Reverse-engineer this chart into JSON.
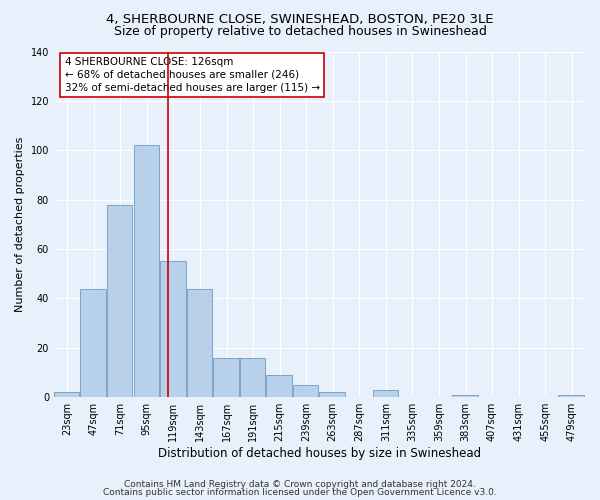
{
  "title1": "4, SHERBOURNE CLOSE, SWINESHEAD, BOSTON, PE20 3LE",
  "title2": "Size of property relative to detached houses in Swineshead",
  "xlabel": "Distribution of detached houses by size in Swineshead",
  "ylabel": "Number of detached properties",
  "bin_edges": [
    23,
    47,
    71,
    95,
    119,
    143,
    167,
    191,
    215,
    239,
    263,
    287,
    311,
    335,
    359,
    383,
    407,
    431,
    455,
    479,
    503
  ],
  "bar_heights": [
    2,
    44,
    78,
    102,
    55,
    44,
    16,
    16,
    9,
    5,
    2,
    0,
    3,
    0,
    0,
    1,
    0,
    0,
    0,
    1
  ],
  "bar_color": "#b8d0ea",
  "bar_edge_color": "#6a9cc0",
  "vline_x": 126,
  "vline_color": "#cc0000",
  "annotation_box_text": "4 SHERBOURNE CLOSE: 126sqm\n← 68% of detached houses are smaller (246)\n32% of semi-detached houses are larger (115) →",
  "ylim": [
    0,
    140
  ],
  "yticks": [
    0,
    20,
    40,
    60,
    80,
    100,
    120,
    140
  ],
  "background_color": "#e8f0fb",
  "plot_bg_color": "#e8f0fb",
  "footer1": "Contains HM Land Registry data © Crown copyright and database right 2024.",
  "footer2": "Contains public sector information licensed under the Open Government Licence v3.0.",
  "title1_fontsize": 9.5,
  "title2_fontsize": 9,
  "xlabel_fontsize": 8.5,
  "ylabel_fontsize": 8,
  "tick_fontsize": 7,
  "annotation_fontsize": 7.5,
  "footer_fontsize": 6.5
}
